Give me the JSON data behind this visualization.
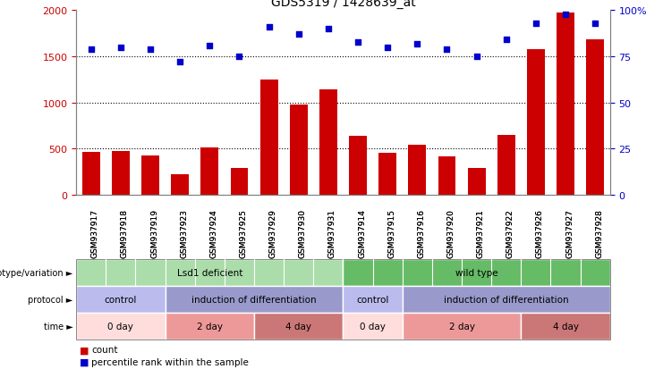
{
  "title": "GDS5319 / 1428639_at",
  "samples": [
    "GSM937917",
    "GSM937918",
    "GSM937919",
    "GSM937923",
    "GSM937924",
    "GSM937925",
    "GSM937929",
    "GSM937930",
    "GSM937931",
    "GSM937914",
    "GSM937915",
    "GSM937916",
    "GSM937920",
    "GSM937921",
    "GSM937922",
    "GSM937926",
    "GSM937927",
    "GSM937928"
  ],
  "counts": [
    460,
    470,
    425,
    220,
    510,
    290,
    1250,
    975,
    1140,
    635,
    455,
    545,
    420,
    290,
    650,
    1580,
    1975,
    1680
  ],
  "percentile_ranks": [
    79,
    80,
    79,
    72,
    81,
    75,
    91,
    87,
    90,
    83,
    80,
    82,
    79,
    75,
    84,
    93,
    98,
    93
  ],
  "ylim_left": [
    0,
    2000
  ],
  "ylim_right": [
    0,
    100
  ],
  "yticks_left": [
    0,
    500,
    1000,
    1500,
    2000
  ],
  "yticks_right": [
    0,
    25,
    50,
    75,
    100
  ],
  "ytick_labels_left": [
    "0",
    "500",
    "1000",
    "1500",
    "2000"
  ],
  "ytick_labels_right": [
    "0",
    "25",
    "50",
    "75",
    "100%"
  ],
  "bar_color": "#cc0000",
  "dot_color": "#0000cc",
  "background_color": "#ffffff",
  "genotype_row": {
    "label": "genotype/variation",
    "segments": [
      {
        "text": "Lsd1 deficient",
        "start": 0,
        "end": 9,
        "color": "#aaddaa"
      },
      {
        "text": "wild type",
        "start": 9,
        "end": 18,
        "color": "#66bb66"
      }
    ]
  },
  "protocol_row": {
    "label": "protocol",
    "segments": [
      {
        "text": "control",
        "start": 0,
        "end": 3,
        "color": "#bbbbee"
      },
      {
        "text": "induction of differentiation",
        "start": 3,
        "end": 9,
        "color": "#9999cc"
      },
      {
        "text": "control",
        "start": 9,
        "end": 11,
        "color": "#bbbbee"
      },
      {
        "text": "induction of differentiation",
        "start": 11,
        "end": 18,
        "color": "#9999cc"
      }
    ]
  },
  "time_row": {
    "label": "time",
    "segments": [
      {
        "text": "0 day",
        "start": 0,
        "end": 3,
        "color": "#ffdddd"
      },
      {
        "text": "2 day",
        "start": 3,
        "end": 6,
        "color": "#ee9999"
      },
      {
        "text": "4 day",
        "start": 6,
        "end": 9,
        "color": "#cc7777"
      },
      {
        "text": "0 day",
        "start": 9,
        "end": 11,
        "color": "#ffdddd"
      },
      {
        "text": "2 day",
        "start": 11,
        "end": 15,
        "color": "#ee9999"
      },
      {
        "text": "4 day",
        "start": 15,
        "end": 18,
        "color": "#cc7777"
      }
    ]
  },
  "legend_items": [
    {
      "color": "#cc0000",
      "label": "count"
    },
    {
      "color": "#0000cc",
      "label": "percentile rank within the sample"
    }
  ]
}
